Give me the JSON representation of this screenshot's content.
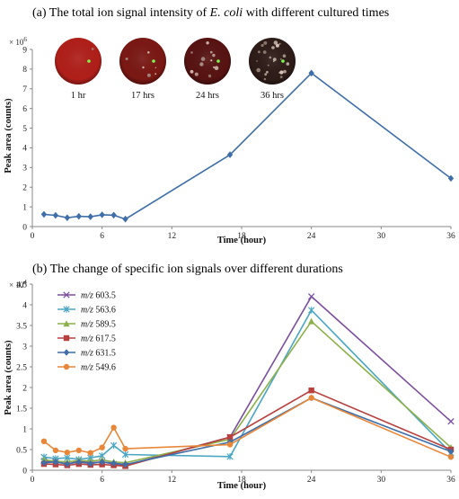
{
  "chart_data": [
    {
      "type": "line",
      "title_prefix": "(a) The total ion signal intensity of ",
      "title_italic": "E. coli",
      "title_suffix": " with different cultured times",
      "xlabel": "Time (hour)",
      "ylabel": "Peak area (counts)",
      "y_multiplier": "× 10",
      "y_multiplier_exp": "6",
      "xlim": [
        0,
        36
      ],
      "ylim": [
        0,
        9
      ],
      "xticks": [
        0,
        6,
        12,
        18,
        24,
        30,
        36
      ],
      "yticks": [
        0,
        1,
        2,
        3,
        4,
        5,
        6,
        7,
        8,
        9
      ],
      "grid": false,
      "series": [
        {
          "color": "#3f6ea8",
          "marker": "diamond",
          "x": [
            1,
            2,
            3,
            4,
            5,
            6,
            7,
            8,
            17,
            24,
            36
          ],
          "y": [
            0.62,
            0.57,
            0.45,
            0.52,
            0.5,
            0.6,
            0.58,
            0.38,
            3.65,
            7.8,
            2.45
          ]
        }
      ],
      "inset_images": [
        {
          "label": "1 hr",
          "base": "#b01f1a",
          "spots": 1
        },
        {
          "label": "17 hrs",
          "base": "#7a1814",
          "spots": 6
        },
        {
          "label": "24 hrs",
          "base": "#571312",
          "spots": 12
        },
        {
          "label": "36 hrs",
          "base": "#2e1c18",
          "spots": 24
        }
      ]
    },
    {
      "type": "line",
      "title": "(b) The change of specific ion signals over different durations",
      "xlabel": "Time (hour)",
      "ylabel": "Peak area (counts)",
      "y_multiplier": "× 10",
      "y_multiplier_exp": "4",
      "xlim": [
        0,
        36
      ],
      "ylim": [
        0,
        4.5
      ],
      "xticks": [
        0,
        6,
        12,
        18,
        24,
        30,
        36
      ],
      "yticks": [
        0,
        0.5,
        1,
        1.5,
        2,
        2.5,
        3,
        3.5,
        4,
        4.5
      ],
      "grid": false,
      "legend_position": "top-left",
      "series": [
        {
          "prefix": "m/z",
          "name": "603.5",
          "color": "#7b4f9e",
          "marker": "x",
          "x": [
            1,
            2,
            3,
            4,
            5,
            6,
            7,
            8,
            17,
            24,
            36
          ],
          "y": [
            0.22,
            0.2,
            0.15,
            0.22,
            0.18,
            0.2,
            0.15,
            0.12,
            0.8,
            4.2,
            1.18
          ]
        },
        {
          "prefix": "m/z",
          "name": "563.6",
          "color": "#4aa6c3",
          "marker": "star",
          "x": [
            1,
            2,
            3,
            4,
            5,
            6,
            7,
            8,
            17,
            24,
            36
          ],
          "y": [
            0.32,
            0.28,
            0.3,
            0.26,
            0.3,
            0.35,
            0.6,
            0.38,
            0.33,
            3.87,
            0.42
          ]
        },
        {
          "prefix": "m/z",
          "name": "589.5",
          "color": "#8cb04a",
          "marker": "triangle",
          "x": [
            1,
            2,
            3,
            4,
            5,
            6,
            7,
            8,
            17,
            24,
            36
          ],
          "y": [
            0.25,
            0.22,
            0.2,
            0.24,
            0.22,
            0.25,
            0.2,
            0.18,
            0.75,
            3.6,
            0.55
          ]
        },
        {
          "prefix": "m/z",
          "name": "617.5",
          "color": "#b8413f",
          "marker": "square",
          "x": [
            1,
            2,
            3,
            4,
            5,
            6,
            7,
            8,
            17,
            24,
            36
          ],
          "y": [
            0.15,
            0.14,
            0.12,
            0.15,
            0.13,
            0.14,
            0.12,
            0.1,
            0.8,
            1.93,
            0.5
          ]
        },
        {
          "prefix": "m/z",
          "name": "631.5",
          "color": "#3f6ea8",
          "marker": "diamond",
          "x": [
            1,
            2,
            3,
            4,
            5,
            6,
            7,
            8,
            17,
            24,
            36
          ],
          "y": [
            0.18,
            0.2,
            0.15,
            0.2,
            0.16,
            0.2,
            0.17,
            0.14,
            0.68,
            1.75,
            0.45
          ]
        },
        {
          "prefix": "m/z",
          "name": "549.6",
          "color": "#e8873a",
          "marker": "circle",
          "x": [
            1,
            2,
            3,
            4,
            5,
            6,
            7,
            8,
            17,
            24,
            36
          ],
          "y": [
            0.7,
            0.48,
            0.43,
            0.48,
            0.42,
            0.55,
            1.03,
            0.52,
            0.62,
            1.75,
            0.32
          ]
        }
      ]
    }
  ]
}
